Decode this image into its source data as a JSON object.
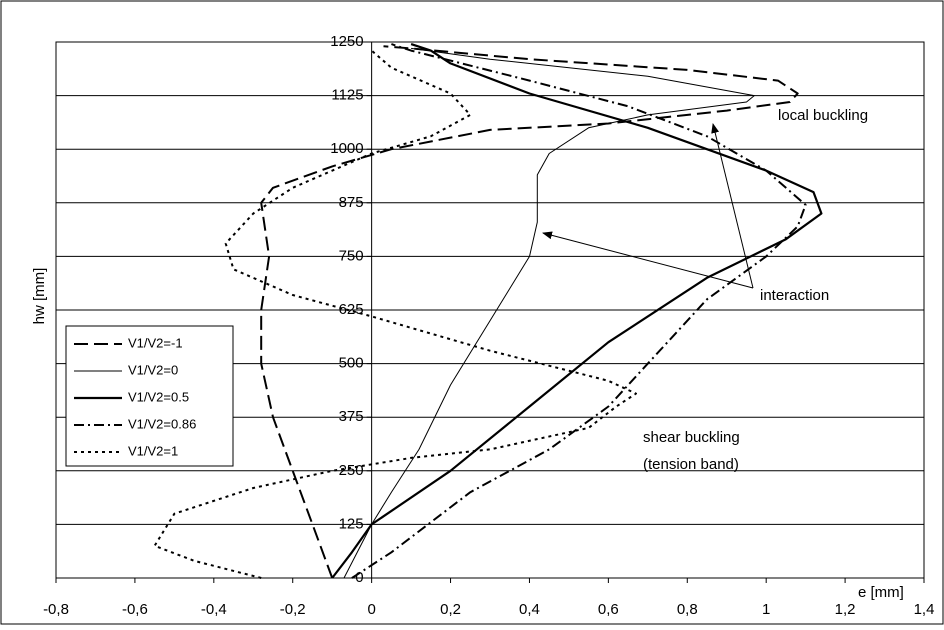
{
  "chart_data": {
    "type": "line",
    "xlabel": "e [mm]",
    "ylabel": "hw [mm]",
    "xlim": [
      -0.8,
      1.4
    ],
    "ylim": [
      0,
      1250
    ],
    "xticks": [
      {
        "value": -0.8,
        "label": "-0,8"
      },
      {
        "value": -0.6,
        "label": "-0,6"
      },
      {
        "value": -0.4,
        "label": "-0,4"
      },
      {
        "value": -0.2,
        "label": "-0,2"
      },
      0,
      {
        "value": 0.2,
        "label": "0,2"
      },
      {
        "value": 0.4,
        "label": "0,4"
      },
      {
        "value": 0.6,
        "label": "0,6"
      },
      {
        "value": 0.8,
        "label": "0,8"
      },
      1,
      {
        "value": 1.2,
        "label": "1,2"
      },
      {
        "value": 1.4,
        "label": "1,4"
      }
    ],
    "yticks": [
      0,
      125,
      250,
      375,
      500,
      625,
      750,
      875,
      1000,
      1125,
      1250
    ],
    "grid": true,
    "legend": "left",
    "series": [
      {
        "name": "V1/V2=-1",
        "color": "#000000",
        "dash": "14,6",
        "width": 2,
        "x": [
          -0.1,
          -0.15,
          -0.2,
          -0.25,
          -0.28,
          -0.28,
          -0.26,
          -0.28,
          -0.25,
          -0.1,
          0.05,
          0.3,
          0.6,
          0.9,
          1.06,
          1.08,
          1.03,
          0.8,
          0.4,
          0.1,
          0.03
        ],
        "y": [
          0,
          125,
          250,
          375,
          500,
          625,
          750,
          875,
          910,
          960,
          1000,
          1045,
          1060,
          1090,
          1110,
          1130,
          1160,
          1185,
          1210,
          1235,
          1240
        ]
      },
      {
        "name": "V1/V2=0",
        "color": "#000000",
        "dash": "",
        "width": 1,
        "x": [
          -0.07,
          0.0,
          0.05,
          0.12,
          0.2,
          0.3,
          0.4,
          0.42,
          0.42,
          0.45,
          0.55,
          0.7,
          0.95,
          0.97,
          0.7,
          0.3,
          0.1
        ],
        "y": [
          0,
          125,
          200,
          300,
          450,
          600,
          750,
          830,
          940,
          990,
          1050,
          1080,
          1110,
          1125,
          1170,
          1210,
          1235
        ]
      },
      {
        "name": "V1/V2=0.5",
        "color": "#000000",
        "dash": "",
        "width": 2.2,
        "x": [
          -0.1,
          -0.05,
          0,
          0.2,
          0.4,
          0.6,
          0.85,
          1.05,
          1.14,
          1.12,
          1.0,
          0.7,
          0.4,
          0.2,
          0.15,
          0.1
        ],
        "y": [
          0,
          60,
          125,
          250,
          400,
          550,
          700,
          790,
          850,
          900,
          950,
          1050,
          1130,
          1200,
          1230,
          1245
        ]
      },
      {
        "name": "V1/V2=0.86",
        "color": "#000000",
        "dash": "10,4,2,4",
        "width": 2,
        "x": [
          -0.05,
          0.05,
          0.25,
          0.45,
          0.6,
          0.7,
          0.85,
          1.0,
          1.08,
          1.1,
          1.0,
          0.85,
          0.65,
          0.4,
          0.1,
          0.05
        ],
        "y": [
          0,
          60,
          200,
          300,
          400,
          500,
          650,
          750,
          820,
          870,
          950,
          1030,
          1100,
          1160,
          1230,
          1245
        ]
      },
      {
        "name": "V1/V2=1",
        "color": "#000000",
        "dash": "3,4",
        "width": 2,
        "x": [
          -0.28,
          -0.45,
          -0.55,
          -0.5,
          -0.3,
          -0.1,
          0.1,
          0.3,
          0.55,
          0.62,
          0.67,
          0.6,
          0.3,
          0.0,
          -0.2,
          -0.35,
          -0.37,
          -0.3,
          -0.2,
          0,
          0.15,
          0.25,
          0.2,
          0.05,
          0.0
        ],
        "y": [
          0,
          40,
          75,
          150,
          210,
          250,
          280,
          300,
          350,
          400,
          430,
          460,
          530,
          610,
          660,
          720,
          780,
          850,
          910,
          990,
          1030,
          1080,
          1130,
          1190,
          1230
        ]
      }
    ],
    "annotations": [
      "local buckling",
      "interaction",
      "shear buckling",
      "(tension band)"
    ]
  }
}
